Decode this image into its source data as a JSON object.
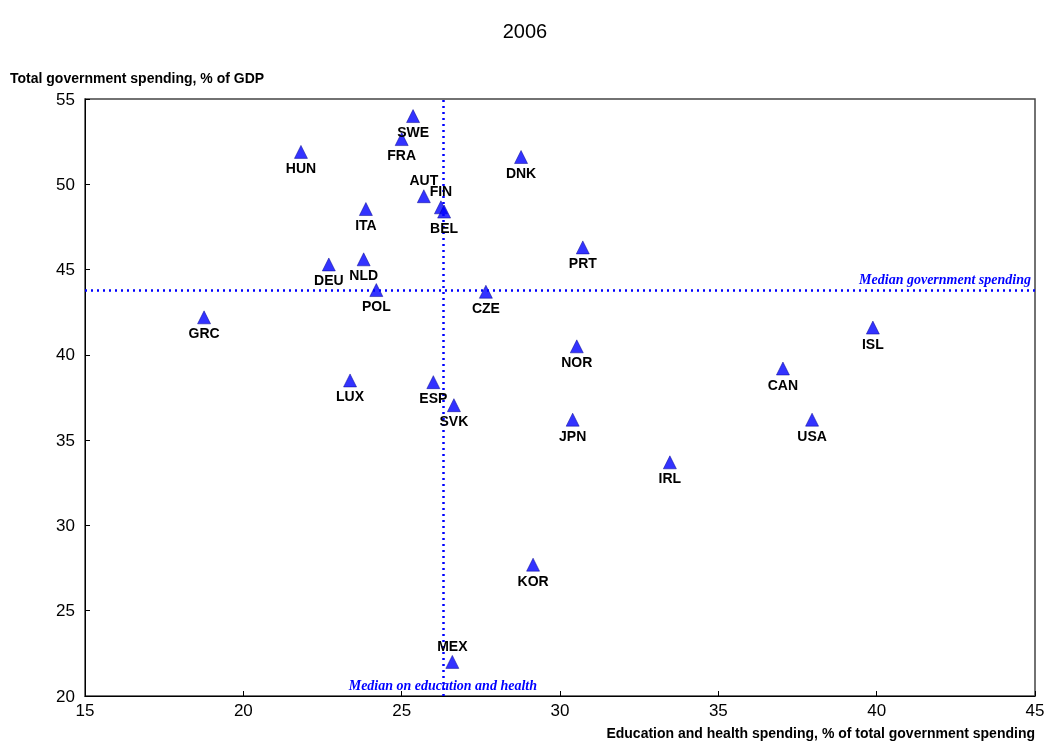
{
  "chart_data": {
    "type": "scatter",
    "title": "2006",
    "xlabel": "Education and health spending, % of total government spending",
    "ylabel": "Total government spending, % of GDP",
    "x": [
      25.36,
      25.0,
      21.82,
      28.77,
      25.7,
      26.24,
      26.34,
      23.87,
      23.8,
      22.7,
      24.2,
      27.66,
      30.72,
      18.76,
      30.53,
      39.88,
      37.04,
      37.96,
      23.37,
      26.0,
      26.65,
      30.4,
      33.47,
      29.15,
      26.6
    ],
    "series": [
      {
        "color": "#0000ff",
        "values": [
          54.0,
          52.65,
          51.9,
          51.6,
          49.3,
          48.65,
          48.4,
          48.55,
          45.6,
          45.3,
          43.8,
          43.7,
          46.3,
          42.2,
          40.5,
          41.6,
          39.2,
          36.2,
          38.5,
          38.4,
          37.05,
          36.2,
          33.7,
          27.7,
          22.0
        ]
      }
    ],
    "annotations": [
      {
        "text": "SWE",
        "x": 25.36,
        "y": 54.0
      },
      {
        "text": "FRA",
        "x": 25.0,
        "y": 52.65
      },
      {
        "text": "HUN",
        "x": 21.82,
        "y": 51.9
      },
      {
        "text": "DNK",
        "x": 28.77,
        "y": 51.6
      },
      {
        "text": "AUT",
        "x": 25.7,
        "y": 49.3
      },
      {
        "text": "FIN",
        "x": 26.24,
        "y": 48.65
      },
      {
        "text": "BEL",
        "x": 26.34,
        "y": 48.4
      },
      {
        "text": "ITA",
        "x": 23.87,
        "y": 48.55
      },
      {
        "text": "NLD",
        "x": 23.8,
        "y": 45.6
      },
      {
        "text": "DEU",
        "x": 22.7,
        "y": 45.3
      },
      {
        "text": "POL",
        "x": 24.2,
        "y": 43.8
      },
      {
        "text": "CZE",
        "x": 27.66,
        "y": 43.7
      },
      {
        "text": "PRT",
        "x": 30.72,
        "y": 46.3
      },
      {
        "text": "GRC",
        "x": 18.76,
        "y": 42.2
      },
      {
        "text": "NOR",
        "x": 30.53,
        "y": 40.5
      },
      {
        "text": "ISL",
        "x": 39.88,
        "y": 41.6
      },
      {
        "text": "CAN",
        "x": 37.04,
        "y": 39.2
      },
      {
        "text": "USA",
        "x": 37.96,
        "y": 36.2
      },
      {
        "text": "LUX",
        "x": 23.37,
        "y": 38.5
      },
      {
        "text": "ESP",
        "x": 26.0,
        "y": 38.4
      },
      {
        "text": "SVK",
        "x": 26.65,
        "y": 37.05
      },
      {
        "text": "JPN",
        "x": 30.4,
        "y": 36.2
      },
      {
        "text": "IRL",
        "x": 33.47,
        "y": 33.7
      },
      {
        "text": "KOR",
        "x": 29.15,
        "y": 27.7
      },
      {
        "text": "MEX",
        "x": 26.6,
        "y": 22.0
      }
    ],
    "ref_lines": [
      {
        "axis": "y",
        "value": 43.8,
        "label": "Median government spending",
        "color": "#0000ff",
        "line_style": "dotted"
      },
      {
        "axis": "x",
        "value": 26.3,
        "label": "Median on education and health",
        "color": "#0000ff",
        "line_style": "dotted"
      }
    ],
    "xlim": [
      15,
      45
    ],
    "xticks": [
      15,
      20,
      25,
      30,
      35,
      40,
      45
    ],
    "ylim": [
      20,
      55
    ],
    "yticks": [
      20,
      25,
      30,
      35,
      40,
      45,
      50,
      55
    ],
    "marker": "triangle",
    "grid": false
  }
}
